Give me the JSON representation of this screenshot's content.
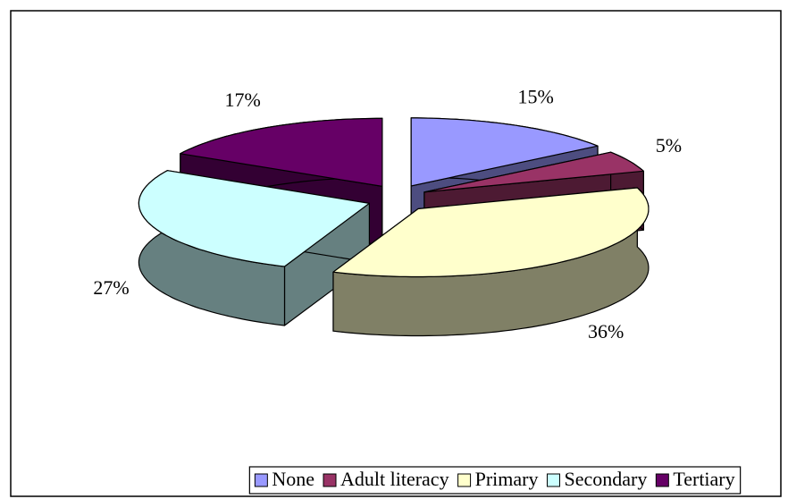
{
  "chart_data": {
    "type": "pie3d",
    "categories": [
      "None",
      "Adult literacy",
      "Primary",
      "Secondary",
      "Tertiary"
    ],
    "values": [
      15,
      5,
      36,
      27,
      17
    ],
    "value_labels": [
      "15%",
      "5%",
      "36%",
      "27%",
      "17%"
    ],
    "colors": [
      "#9999ff",
      "#993366",
      "#ffffcc",
      "#ccffff",
      "#660066"
    ],
    "legend": "bottom"
  }
}
